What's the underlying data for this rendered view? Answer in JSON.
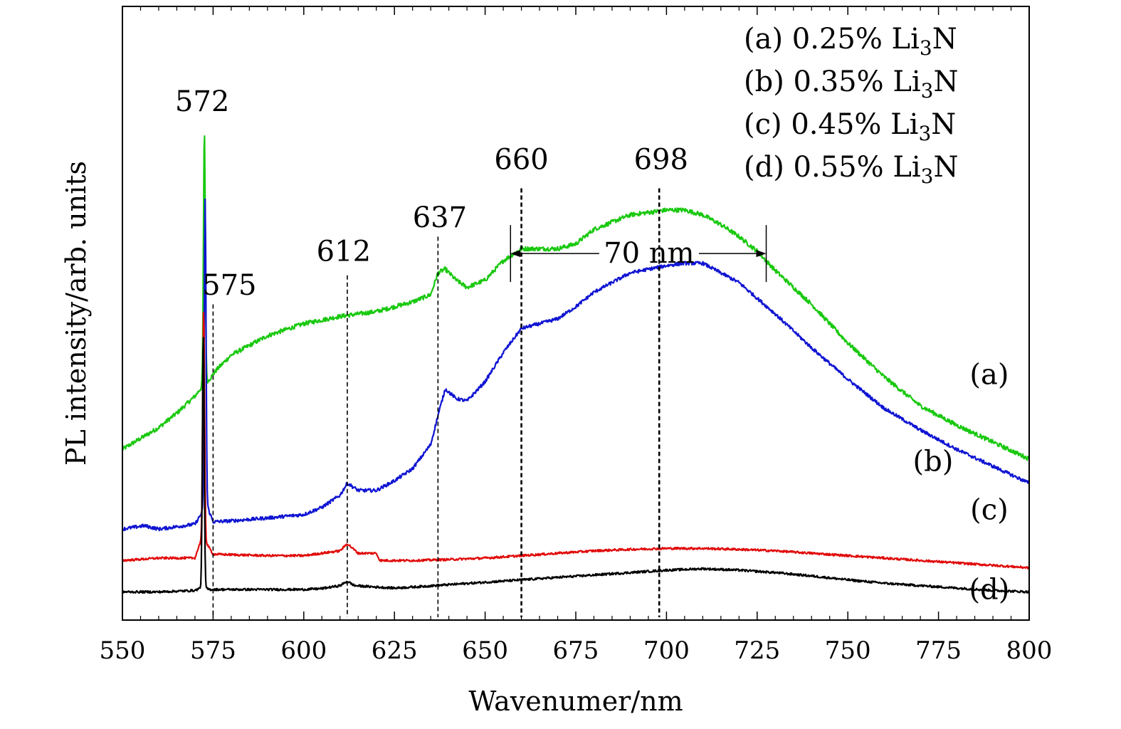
{
  "chart_data": {
    "type": "line",
    "xlabel": "Wavenumer/nm",
    "ylabel": "PL intensity/arb. units",
    "xlim": [
      550,
      800
    ],
    "ylim": [
      0,
      100
    ],
    "x_ticks": [
      "550",
      "575",
      "600",
      "625",
      "650",
      "675",
      "700",
      "725",
      "750",
      "775",
      "800"
    ],
    "legend": {
      "placement": "top-right",
      "entries": [
        {
          "label": "(a)",
          "value": "0.25%",
          "compound": "Li",
          "sub": "3",
          "suffix": "N"
        },
        {
          "label": "(b)",
          "value": "0.35%",
          "compound": "Li",
          "sub": "3",
          "suffix": "N"
        },
        {
          "label": "(c)",
          "value": "0.45%",
          "compound": "Li",
          "sub": "3",
          "suffix": "N"
        },
        {
          "label": "(d)",
          "value": "0.55%",
          "compound": "Li",
          "sub": "3",
          "suffix": "N"
        }
      ]
    },
    "series": [
      {
        "label": "(a)",
        "color": "#19c80f",
        "x": [
          550,
          560,
          565,
          570,
          572,
          574,
          576,
          580,
          590,
          600,
          610,
          620,
          630,
          635,
          637,
          639,
          642,
          645,
          650,
          655,
          660,
          665,
          670,
          675,
          680,
          690,
          700,
          705,
          710,
          715,
          720,
          725,
          730,
          740,
          750,
          760,
          770,
          780,
          790,
          800
        ],
        "y": [
          34,
          38.5,
          41.5,
          45,
          47,
          48.5,
          50.5,
          53.5,
          57.5,
          60,
          61.5,
          62.5,
          64.5,
          66,
          70.5,
          71.3,
          69,
          67.5,
          69,
          73,
          75.5,
          75.5,
          75.5,
          76.5,
          79.5,
          82.5,
          83.5,
          83.5,
          82.5,
          80.5,
          78,
          75,
          71,
          64,
          56,
          49,
          43,
          39,
          35.5,
          32
        ],
        "peaks": [
          {
            "x": 572.6,
            "y": 100
          }
        ]
      },
      {
        "label": "(b)",
        "color": "#0f14d2",
        "x": [
          550,
          556,
          560,
          565,
          570,
          572,
          573.5,
          575,
          580,
          590,
          600,
          605,
          610,
          612,
          615,
          620,
          625,
          630,
          635,
          637,
          639,
          642,
          645,
          650,
          655,
          660,
          665,
          670,
          675,
          680,
          690,
          700,
          705,
          710,
          715,
          720,
          730,
          740,
          750,
          760,
          770,
          780,
          790,
          800
        ],
        "y": [
          17.5,
          18.2,
          17.5,
          18,
          18.5,
          21,
          22,
          19,
          19.2,
          19.8,
          20.5,
          22,
          24.5,
          27,
          25.5,
          25.5,
          27.5,
          30,
          35,
          41,
          46.5,
          44.5,
          44,
          48,
          54,
          59,
          60,
          61,
          63.5,
          66.5,
          70.5,
          72,
          72.5,
          72.5,
          70.5,
          68.5,
          62,
          55,
          48.5,
          42.5,
          38,
          34,
          30.5,
          27
        ],
        "peaks": [
          {
            "x": 572.8,
            "y": 85.5
          }
        ]
      },
      {
        "label": "(c)",
        "color": "#e10a0a",
        "x": [
          550,
          560,
          570,
          572,
          575,
          580,
          590,
          600,
          605,
          610,
          612,
          615,
          620,
          621,
          625,
          630,
          640,
          650,
          660,
          670,
          680,
          690,
          700,
          710,
          720,
          730,
          740,
          750,
          760,
          770,
          780,
          790,
          800
        ],
        "y": [
          11,
          11.5,
          11.5,
          16,
          12.3,
          12.2,
          12,
          12,
          12.5,
          13,
          14.5,
          12.5,
          12.5,
          11,
          11,
          11,
          11.2,
          11.5,
          12,
          12.5,
          13,
          13.3,
          13.5,
          13.5,
          13.3,
          13,
          12.5,
          12,
          11.5,
          11,
          10.5,
          10,
          9.5
        ],
        "peaks": [
          {
            "x": 572.4,
            "y": 63
          }
        ]
      },
      {
        "label": "(d)",
        "color": "#000000",
        "x": [
          550,
          560,
          570,
          572,
          574,
          580,
          590,
          600,
          605,
          610,
          612,
          614,
          620,
          625,
          630,
          640,
          650,
          660,
          670,
          680,
          690,
          700,
          710,
          720,
          730,
          740,
          750,
          760,
          770,
          780,
          790,
          800
        ],
        "y": [
          4.5,
          4.5,
          4.8,
          5.5,
          5,
          5,
          5,
          5,
          5.2,
          5.8,
          6.7,
          5.8,
          5.5,
          5.3,
          5.5,
          6,
          6.5,
          7,
          7.5,
          8,
          8.5,
          9,
          9.3,
          9,
          8.5,
          7.8,
          7,
          6.3,
          5.8,
          5.3,
          4.8,
          4.5
        ],
        "peaks": [
          {
            "x": 572.3,
            "y": 58
          }
        ]
      }
    ],
    "annotations": {
      "peak_labels": [
        {
          "text": "572",
          "x": 572,
          "y": 104
        },
        {
          "text": "575",
          "x": 579.5,
          "y": 66
        },
        {
          "text": "612",
          "x": 611,
          "y": 73
        },
        {
          "text": "637",
          "x": 637.5,
          "y": 80
        },
        {
          "text": "660",
          "x": 660,
          "y": 92
        },
        {
          "text": "698",
          "x": 698.5,
          "y": 92
        }
      ],
      "dashed_lines": [
        {
          "x": 575,
          "y_top": 64
        },
        {
          "x": 612,
          "y_top": 70
        },
        {
          "x": 637,
          "y_top": 78
        },
        {
          "x": 660,
          "y_top": 88
        },
        {
          "x": 698,
          "y_top": 88
        }
      ],
      "fwhm": {
        "text": "70 nm",
        "x_start": 657,
        "x_end": 727.5,
        "y": 74.5
      },
      "series_labels": [
        {
          "text": "(a)",
          "x": 789,
          "y": 47.5
        },
        {
          "text": "(b)",
          "x": 773.5,
          "y": 29.5
        },
        {
          "text": "(c)",
          "x": 789,
          "y": 19.5
        },
        {
          "text": "(d)",
          "x": 789,
          "y": 3
        }
      ]
    }
  }
}
